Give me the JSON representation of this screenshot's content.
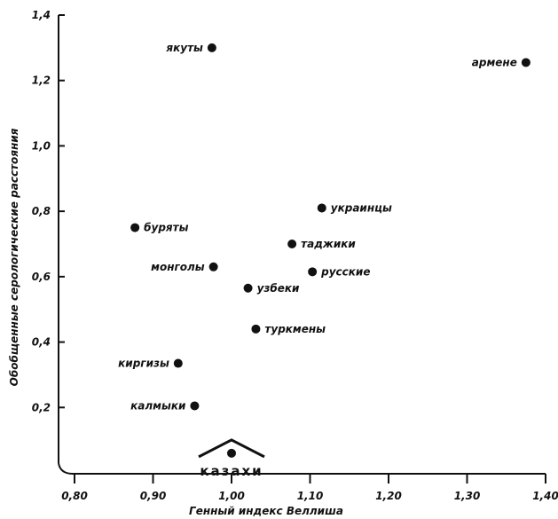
{
  "chart_data": {
    "type": "scatter",
    "title": "",
    "xlabel": "Генный индекс Веллиша",
    "ylabel": "Обобщенные серологические расстояния",
    "xlim": [
      0.8,
      1.4
    ],
    "ylim": [
      0.0,
      1.4
    ],
    "x_ticks": [
      "0,80",
      "0,90",
      "1,00",
      "1,10",
      "1,20",
      "1,30",
      "1,40"
    ],
    "y_ticks": [
      "0,2",
      "0,4",
      "0,6",
      "0,8",
      "1,0",
      "1,2",
      "1,4"
    ],
    "grid": false,
    "reference_point": {
      "name": "казахи",
      "x": 1.0,
      "y": 0.06
    },
    "points": [
      {
        "name": "якуты",
        "x": 0.975,
        "y": 1.3,
        "label_side": "left"
      },
      {
        "name": "армене",
        "x": 1.375,
        "y": 1.255,
        "label_side": "left"
      },
      {
        "name": "украинцы",
        "x": 1.115,
        "y": 0.81,
        "label_side": "right"
      },
      {
        "name": "таджики",
        "x": 1.077,
        "y": 0.7,
        "label_side": "right"
      },
      {
        "name": "буряты",
        "x": 0.877,
        "y": 0.75,
        "label_side": "right"
      },
      {
        "name": "монголы",
        "x": 0.977,
        "y": 0.63,
        "label_side": "left"
      },
      {
        "name": "русские",
        "x": 1.103,
        "y": 0.615,
        "label_side": "right"
      },
      {
        "name": "узбеки",
        "x": 1.021,
        "y": 0.565,
        "label_side": "right"
      },
      {
        "name": "туркмены",
        "x": 1.031,
        "y": 0.44,
        "label_side": "right"
      },
      {
        "name": "киргизы",
        "x": 0.932,
        "y": 0.335,
        "label_side": "left"
      },
      {
        "name": "калмыки",
        "x": 0.953,
        "y": 0.205,
        "label_side": "left"
      }
    ]
  }
}
